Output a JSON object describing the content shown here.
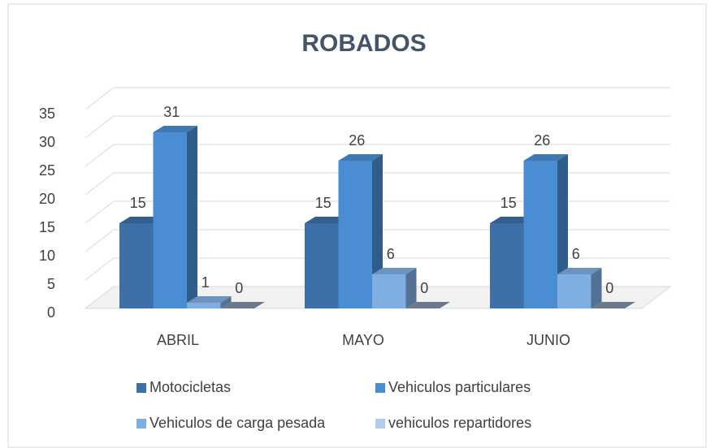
{
  "chart_data": {
    "type": "bar3d",
    "title": "ROBADOS",
    "categories": [
      "ABRIL",
      "MAYO",
      "JUNIO"
    ],
    "series": [
      {
        "name": "Motocicletas",
        "color": "#3d6fa8",
        "values": [
          15,
          15,
          15
        ]
      },
      {
        "name": "Vehiculos particulares",
        "color": "#4a8dd2",
        "values": [
          31,
          26,
          26
        ]
      },
      {
        "name": "Vehiculos de carga pesada",
        "color": "#7eaee2",
        "values": [
          1,
          6,
          6
        ]
      },
      {
        "name": "vehiculos repartidores",
        "color": "#b3cbe8",
        "values": [
          0,
          0,
          0
        ]
      }
    ],
    "ylim": [
      0,
      35
    ],
    "yticks": [
      0,
      5,
      10,
      15,
      20,
      25,
      30,
      35
    ],
    "grid": true,
    "legend": "bottom"
  }
}
